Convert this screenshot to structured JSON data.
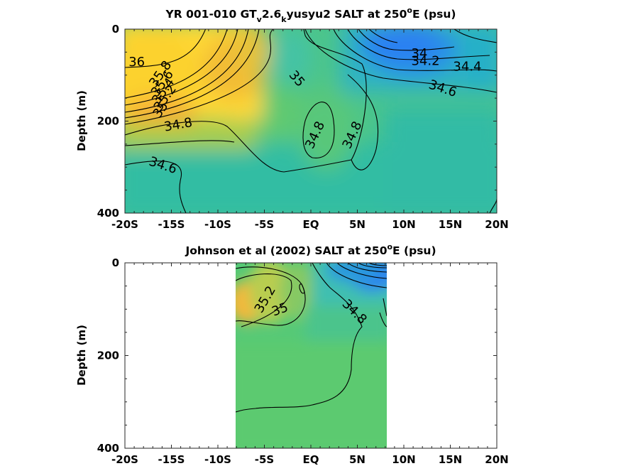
{
  "chart_data": [
    {
      "type": "heatmap",
      "title_parts": [
        "YR 001-010 GT",
        "v",
        "2.6",
        "k",
        "yusyu2 SALT at 250",
        "o",
        "E (psu)"
      ],
      "xlabel": "",
      "ylabel": "Depth (m)",
      "xlim": [
        -20,
        20
      ],
      "ylim": [
        400,
        0
      ],
      "x_tick_values": [
        -20,
        -15,
        -10,
        -5,
        0,
        5,
        10,
        15,
        20
      ],
      "x_tick_labels": [
        "-20S",
        "-15S",
        "-10S",
        "-5S",
        "EQ",
        "5N",
        "10N",
        "15N",
        "20N"
      ],
      "y_tick_values": [
        0,
        200,
        400
      ],
      "y_tick_labels": [
        "0",
        "200",
        "400"
      ],
      "data_lon_range": [
        -20,
        20
      ],
      "contour_labels": [
        {
          "text": "36",
          "lat": -19.6,
          "depth": 80,
          "rot": 0
        },
        {
          "text": "35.8",
          "lat": -16.7,
          "depth": 128,
          "rot": -55
        },
        {
          "text": "35.6",
          "lat": -16.5,
          "depth": 148,
          "rot": -55
        },
        {
          "text": "35.4",
          "lat": -16.4,
          "depth": 165,
          "rot": -55
        },
        {
          "text": "35.2",
          "lat": -16.2,
          "depth": 180,
          "rot": -55
        },
        {
          "text": "35",
          "lat": -16.3,
          "depth": 195,
          "rot": -55
        },
        {
          "text": "34.8",
          "lat": -15.7,
          "depth": 222,
          "rot": -10
        },
        {
          "text": "34.6",
          "lat": -17.5,
          "depth": 295,
          "rot": 18
        },
        {
          "text": "35",
          "lat": -2.4,
          "depth": 100,
          "rot": 50
        },
        {
          "text": "34.8",
          "lat": 0.2,
          "depth": 262,
          "rot": -65
        },
        {
          "text": "34.8",
          "lat": 4.2,
          "depth": 262,
          "rot": -65
        },
        {
          "text": "34",
          "lat": 10.8,
          "depth": 62,
          "rot": 0
        },
        {
          "text": "34.2",
          "lat": 10.8,
          "depth": 78,
          "rot": 0
        },
        {
          "text": "34.4",
          "lat": 15.3,
          "depth": 90,
          "rot": 0
        },
        {
          "text": "34.6",
          "lat": 12.6,
          "depth": 128,
          "rot": 18
        }
      ]
    },
    {
      "type": "heatmap",
      "title_parts": [
        "Johnson et al (2002) SALT at 250",
        "o",
        "E (psu)"
      ],
      "xlabel": "",
      "ylabel": "Depth (m)",
      "xlim": [
        -20,
        20
      ],
      "ylim": [
        400,
        0
      ],
      "x_tick_values": [
        -20,
        -15,
        -10,
        -5,
        0,
        5,
        10,
        15,
        20
      ],
      "x_tick_labels": [
        "-20S",
        "-15S",
        "-10S",
        "-5S",
        "EQ",
        "5N",
        "10N",
        "15N",
        "20N"
      ],
      "y_tick_values": [
        0,
        200,
        400
      ],
      "y_tick_labels": [
        "0",
        "200",
        "400"
      ],
      "data_lon_range": [
        -8,
        8.1
      ],
      "contour_labels": [
        {
          "text": "35.2",
          "lat": -5.3,
          "depth": 110,
          "rot": -60
        },
        {
          "text": "35",
          "lat": -4.0,
          "depth": 115,
          "rot": -20
        },
        {
          "text": "34.8",
          "lat": 3.3,
          "depth": 90,
          "rot": 45
        }
      ]
    }
  ]
}
